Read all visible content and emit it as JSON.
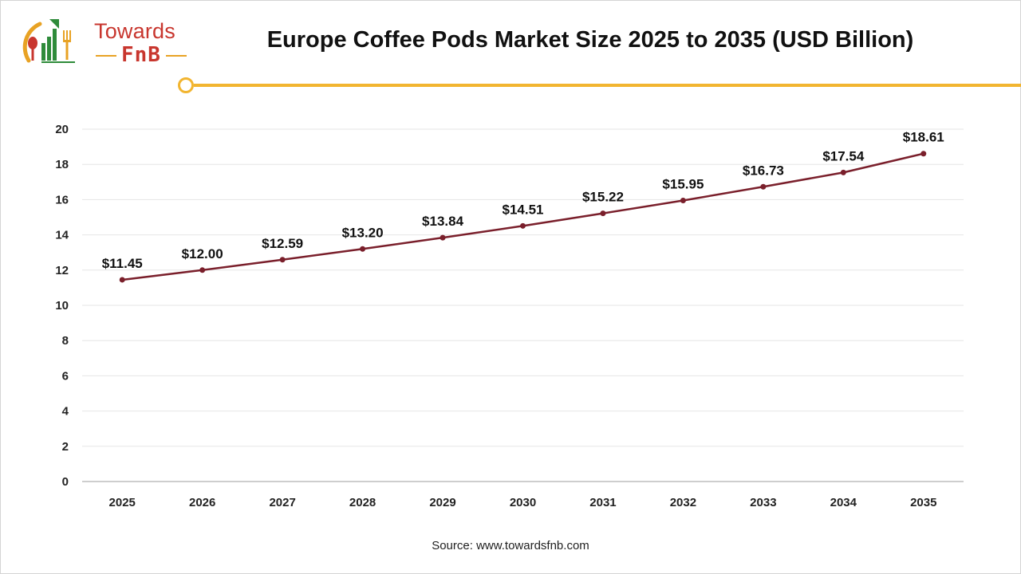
{
  "brand": {
    "line1": "Towards",
    "line2": "FnB"
  },
  "title": "Europe Coffee Pods Market Size 2025 to 2035 (USD Billion)",
  "source": "Source: www.towardsfnb.com",
  "colors": {
    "line": "#7a1f2b",
    "accent": "#f2b530",
    "brand_red": "#c8362e",
    "brand_green": "#2e8b3a"
  },
  "chart_data": {
    "type": "line",
    "categories": [
      "2025",
      "2026",
      "2027",
      "2028",
      "2029",
      "2030",
      "2031",
      "2032",
      "2033",
      "2034",
      "2035"
    ],
    "series": [
      {
        "values": [
          11.45,
          12.0,
          12.59,
          13.2,
          13.84,
          14.51,
          15.22,
          15.95,
          16.73,
          17.54,
          18.61
        ],
        "labels": [
          "$11.45",
          "$12.00",
          "$12.59",
          "$13.20",
          "$13.84",
          "$14.51",
          "$15.22",
          "$15.95",
          "$16.73",
          "$17.54",
          "$18.61"
        ]
      }
    ],
    "yticks": [
      0,
      2,
      4,
      6,
      8,
      10,
      12,
      14,
      16,
      18,
      20
    ],
    "ylim": [
      0,
      20
    ],
    "grid": true,
    "legend": "none",
    "xlabel": "",
    "ylabel": ""
  }
}
